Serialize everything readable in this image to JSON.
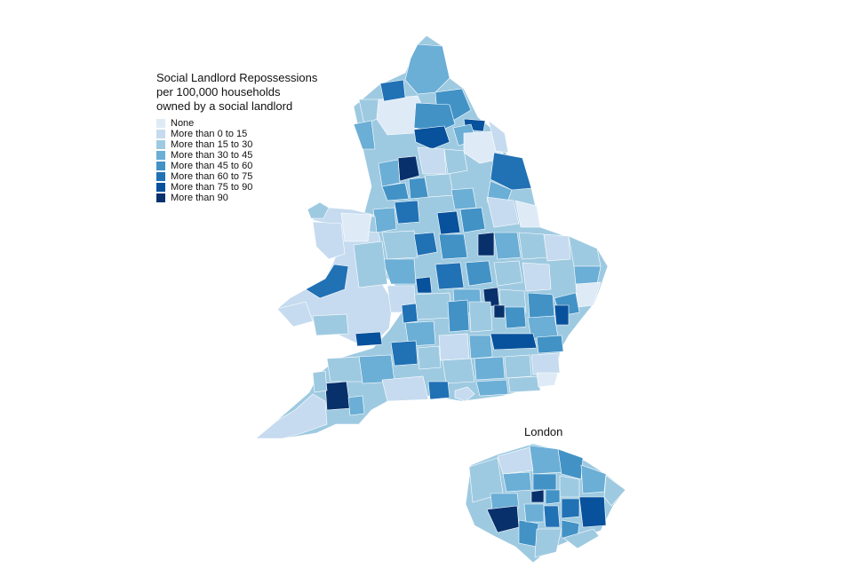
{
  "title_lines": [
    "Social Landlord Repossessions",
    "per 100,000 households",
    "owned by a social landlord"
  ],
  "legend": [
    {
      "label": "None",
      "color": "#deebf7"
    },
    {
      "label": "More than 0 to 15",
      "color": "#c6dbef"
    },
    {
      "label": "More than 15 to 30",
      "color": "#9ecae1"
    },
    {
      "label": "More than 30 to 45",
      "color": "#6baed6"
    },
    {
      "label": "More than 45 to 60",
      "color": "#4292c6"
    },
    {
      "label": "More than 60 to 75",
      "color": "#2171b5"
    },
    {
      "label": "More than 75 to 90",
      "color": "#08519c"
    },
    {
      "label": "More than 90",
      "color": "#08306b"
    }
  ],
  "inset_title": "London"
}
